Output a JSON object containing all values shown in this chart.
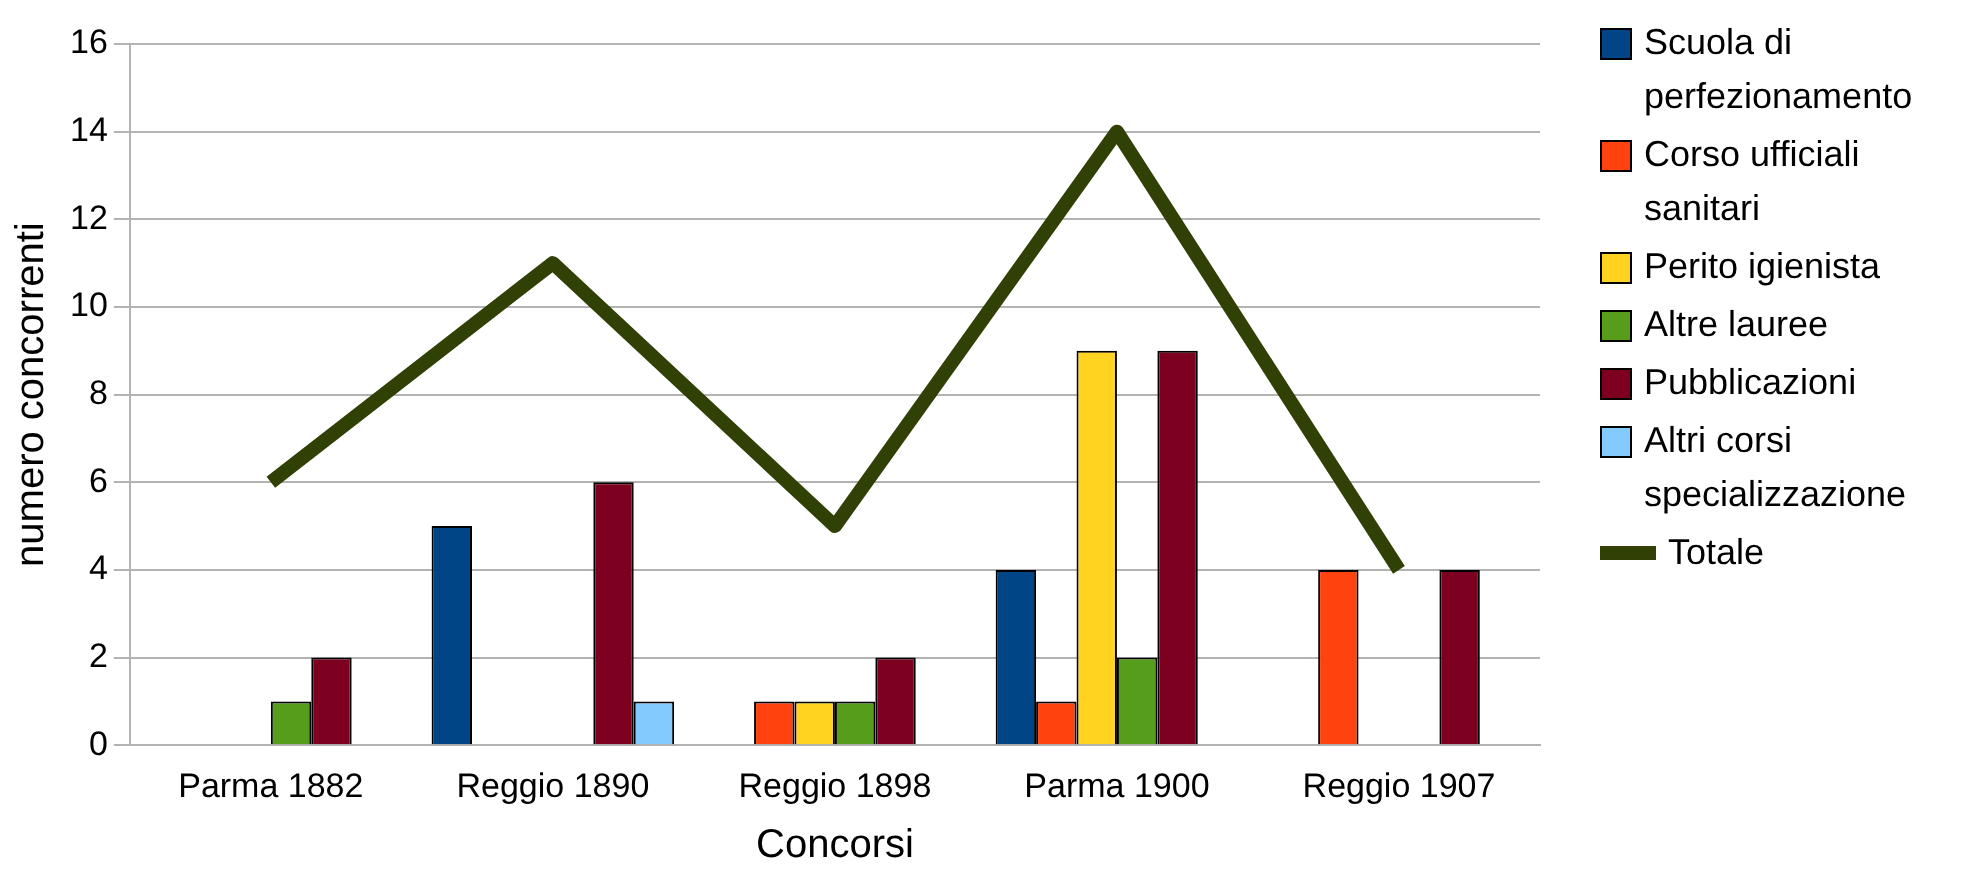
{
  "chart_data": {
    "type": "bar",
    "xlabel": "Concorsi",
    "ylabel": "numero concorrenti",
    "categories": [
      "Parma 1882",
      "Reggio 1890",
      "Reggio 1898",
      "Parma 1900",
      "Reggio 1907"
    ],
    "series": [
      {
        "name": "Scuola di perfezionamento",
        "color": "#004586",
        "values": [
          0,
          5,
          0,
          4,
          0
        ]
      },
      {
        "name": "Corso ufficiali sanitari",
        "color": "#ff420e",
        "values": [
          0,
          0,
          1,
          1,
          4
        ]
      },
      {
        "name": "Perito igienista",
        "color": "#ffd320",
        "values": [
          0,
          0,
          1,
          9,
          0
        ]
      },
      {
        "name": "Altre lauree",
        "color": "#579d1c",
        "values": [
          1,
          0,
          1,
          2,
          0
        ]
      },
      {
        "name": "Pubblicazioni",
        "color": "#7e0021",
        "values": [
          2,
          6,
          2,
          9,
          4
        ]
      },
      {
        "name": "Altri corsi specializzazione",
        "color": "#83caff",
        "values": [
          0,
          1,
          0,
          0,
          0
        ]
      },
      {
        "name": "Totale",
        "type": "line",
        "color": "#314004",
        "values": [
          6,
          11,
          5,
          14,
          4
        ]
      }
    ],
    "ylim": [
      0,
      16
    ],
    "yticks": [
      0,
      2,
      4,
      6,
      8,
      10,
      12,
      14,
      16
    ],
    "grid": "y",
    "legend": "right",
    "marker": "none"
  }
}
